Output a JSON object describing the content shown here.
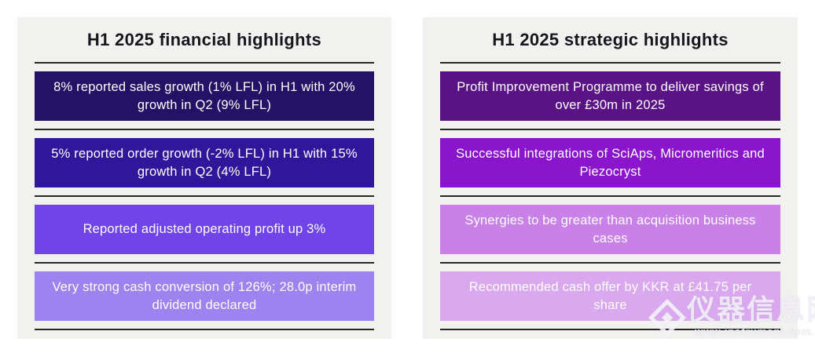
{
  "page": {
    "background": "#ffffff",
    "panel_background": "#f1f1f0",
    "divider_color": "#272727",
    "title_color": "#17161d",
    "box_text_color": "#ffffff"
  },
  "financial_panel": {
    "title": "H1 2025 financial highlights",
    "boxes": [
      {
        "text": "8% reported sales growth (1% LFL) in H1 with 20% growth in Q2 (9% LFL)",
        "color": "#241266"
      },
      {
        "text": "5% reported order growth (-2% LFL) in H1 with 15% growth in Q2 (4% LFL)",
        "color": "#30169a"
      },
      {
        "text": "Reported adjusted operating profit up 3%",
        "color": "#7044e8"
      },
      {
        "text": "Very strong cash conversion of 126%; 28.0p interim dividend declared",
        "color": "#9d83f0"
      }
    ]
  },
  "strategic_panel": {
    "title": "H1 2025 strategic highlights",
    "boxes": [
      {
        "text": "Profit Improvement Programme to deliver savings of over £30m in 2025",
        "color": "#5a1385"
      },
      {
        "text": "Successful integrations of SciAps, Micromeritics and Piezocryst",
        "color": "#8a15cc"
      },
      {
        "text": "Synergies to be greater than acquisition business cases",
        "color": "#c980e8"
      },
      {
        "text": "Recommended cash offer by KKR at £41.75 per share",
        "color": "#d9a8ef"
      }
    ]
  },
  "watermark": {
    "text": "仪器信息网",
    "url": "www.instrument.com.cn"
  }
}
